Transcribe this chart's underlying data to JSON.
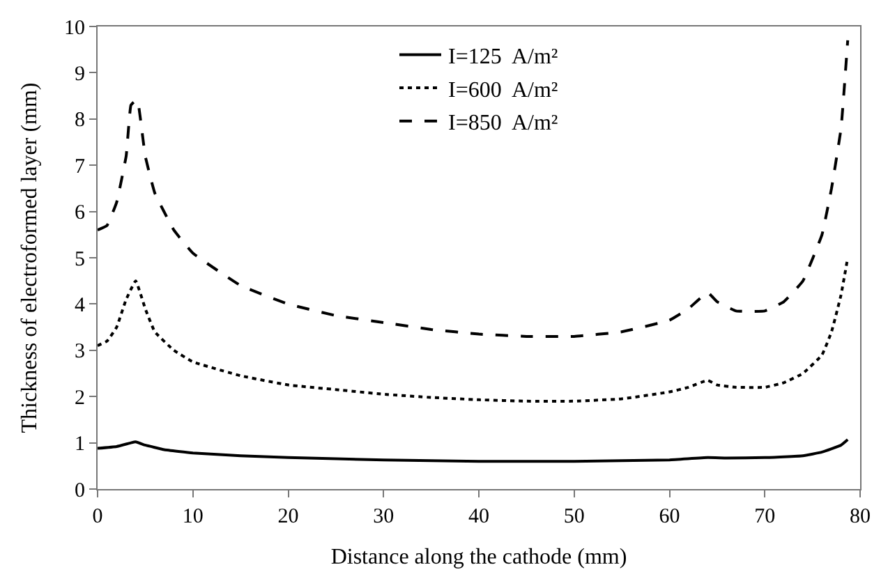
{
  "chart_data": {
    "type": "line",
    "xlabel": "Distance along the cathode (mm)",
    "ylabel": "Thickness of electroformed layer (mm)",
    "xlim": [
      0,
      80
    ],
    "ylim": [
      0,
      10
    ],
    "xticks": [
      0,
      10,
      20,
      30,
      40,
      50,
      60,
      70,
      80
    ],
    "yticks": [
      0,
      1,
      2,
      3,
      4,
      5,
      6,
      7,
      8,
      9,
      10
    ],
    "legend": "top",
    "marker": "none",
    "series": [
      {
        "name": "I=125  A/m²",
        "color": "#000000",
        "line_style": "solid",
        "x": [
          0,
          2,
          3.5,
          4,
          5,
          7,
          10,
          15,
          20,
          30,
          40,
          50,
          60,
          64,
          66,
          70,
          74,
          76,
          78,
          78.7
        ],
        "values": [
          0.88,
          0.92,
          1.0,
          1.02,
          0.95,
          0.85,
          0.78,
          0.72,
          0.68,
          0.63,
          0.6,
          0.6,
          0.63,
          0.68,
          0.67,
          0.68,
          0.72,
          0.8,
          0.95,
          1.07
        ]
      },
      {
        "name": "I=600  A/m²",
        "color": "#000000",
        "line_style": "dotted",
        "x": [
          0,
          1,
          2,
          3,
          4,
          5,
          6,
          8,
          10,
          15,
          20,
          25,
          30,
          35,
          40,
          45,
          50,
          55,
          60,
          62,
          64,
          65,
          67,
          70,
          72,
          74,
          76,
          77,
          78,
          78.7
        ],
        "values": [
          3.1,
          3.2,
          3.5,
          4.1,
          4.5,
          3.9,
          3.4,
          3.0,
          2.75,
          2.45,
          2.25,
          2.15,
          2.05,
          1.98,
          1.93,
          1.9,
          1.9,
          1.95,
          2.1,
          2.2,
          2.35,
          2.25,
          2.2,
          2.2,
          2.3,
          2.5,
          2.9,
          3.4,
          4.2,
          5.0
        ]
      },
      {
        "name": "I=850  A/m²",
        "color": "#000000",
        "line_style": "dashed",
        "x": [
          0,
          1,
          2,
          3,
          3.5,
          4,
          4.2,
          5,
          6,
          8,
          10,
          15,
          20,
          25,
          30,
          35,
          40,
          45,
          50,
          55,
          60,
          62,
          64,
          65,
          67,
          70,
          72,
          74,
          76,
          77,
          78,
          78.7
        ],
        "values": [
          5.6,
          5.7,
          6.2,
          7.2,
          8.3,
          8.4,
          8.4,
          7.2,
          6.4,
          5.6,
          5.1,
          4.4,
          4.0,
          3.75,
          3.6,
          3.45,
          3.35,
          3.3,
          3.3,
          3.4,
          3.65,
          3.9,
          4.25,
          4.05,
          3.85,
          3.85,
          4.05,
          4.5,
          5.5,
          6.5,
          7.8,
          9.7
        ]
      }
    ]
  }
}
